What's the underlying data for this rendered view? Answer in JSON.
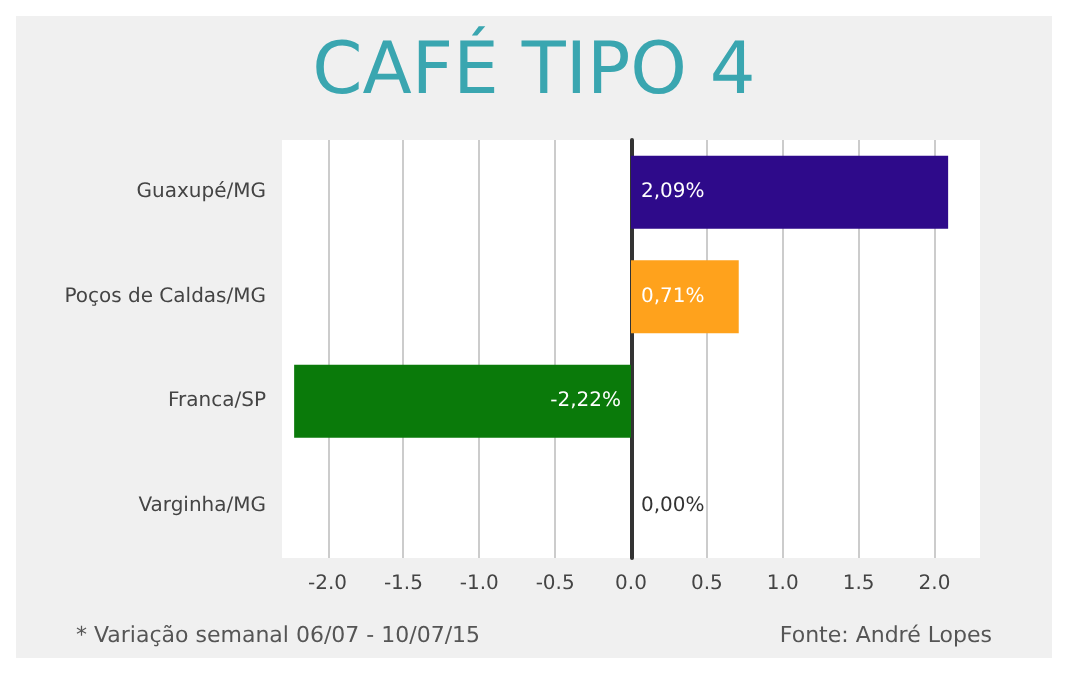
{
  "chart_data": {
    "type": "bar",
    "orientation": "horizontal",
    "title": "CAFÉ TIPO 4",
    "categories": [
      "Guaxupé/MG",
      "Poços de Caldas/MG",
      "Franca/SP",
      "Varginha/MG"
    ],
    "values": [
      2.09,
      0.71,
      -2.22,
      0.0
    ],
    "colors": [
      "#2e0a8a",
      "#ffa21c",
      "#0a7a0a",
      "#888888"
    ],
    "value_labels": [
      "2,09%",
      "0,71%",
      "-2,22%",
      "0,00%"
    ],
    "xlim": [
      -2.3,
      2.3
    ],
    "xticks": [
      {
        "value": -2,
        "label": "-2.0"
      },
      -1.5,
      {
        "value": -1,
        "label": "-1.0"
      },
      -0.5,
      {
        "value": 0,
        "label": "0.0"
      },
      0.5,
      {
        "value": 1,
        "label": "1.0"
      },
      1.5,
      {
        "value": 2,
        "label": "2.0"
      }
    ],
    "grid": "x",
    "annotations": [
      "* Variação semanal 06/07 - 10/07/15",
      "Fonte: André Lopes"
    ]
  }
}
